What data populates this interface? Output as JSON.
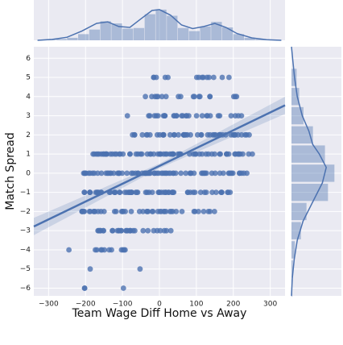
{
  "chart_data": {
    "type": "scatter",
    "subtype": "jointplot",
    "title": "",
    "xlabel": "Team Wage Diff Home vs Away",
    "ylabel": "Match Spread",
    "xlim": [
      -340,
      340
    ],
    "ylim": [
      -6.4,
      6.6
    ],
    "x_ticks": [
      -300,
      -200,
      -100,
      0,
      100,
      200,
      300
    ],
    "y_ticks": [
      -6,
      -5,
      -4,
      -3,
      -2,
      -1,
      0,
      1,
      2,
      3,
      4,
      5,
      6
    ],
    "x_tick_labels": [
      "−300",
      "−200",
      "−100",
      "0",
      "100",
      "200",
      "300"
    ],
    "y_tick_labels": [
      "−6",
      "−5",
      "−4",
      "−3",
      "−2",
      "−1",
      "0",
      "1",
      "2",
      "3",
      "4",
      "5",
      "6"
    ],
    "grid": true,
    "regression": {
      "slope": 0.0093,
      "intercept": 0.38,
      "ci_halfwidth": [
        0.12,
        0.45
      ]
    },
    "colors": {
      "points": "#4c72b0",
      "line": "#4c72b0",
      "band": "#4c72b0",
      "background": "#eaeaf2",
      "grid": "#ffffff"
    },
    "points_by_spread": [
      {
        "y": 5,
        "ranges": [
          [
            -30,
            40
          ],
          [
            95,
            210
          ]
        ],
        "n": 14
      },
      {
        "y": 4,
        "ranges": [
          [
            -50,
            60
          ],
          [
            85,
            215
          ]
        ],
        "n": 18
      },
      {
        "y": 3,
        "ranges": [
          [
            -100,
            -85
          ],
          [
            -35,
            225
          ]
        ],
        "n": 30
      },
      {
        "y": 2,
        "ranges": [
          [
            -75,
            245
          ]
        ],
        "n": 48
      },
      {
        "y": 1,
        "ranges": [
          [
            -180,
            255
          ]
        ],
        "n": 70
      },
      {
        "y": 0,
        "ranges": [
          [
            -215,
            240
          ]
        ],
        "n": 78
      },
      {
        "y": -1,
        "ranges": [
          [
            -225,
            200
          ]
        ],
        "n": 62
      },
      {
        "y": -2,
        "ranges": [
          [
            -210,
            150
          ]
        ],
        "n": 45
      },
      {
        "y": -3,
        "ranges": [
          [
            -185,
            40
          ],
          [
            220,
            222
          ]
        ],
        "n": 30
      },
      {
        "y": -4,
        "ranges": [
          [
            -245,
            -240
          ],
          [
            -175,
            -75
          ],
          [
            -40,
            -35
          ]
        ],
        "n": 12
      },
      {
        "y": -5,
        "ranges": [
          [
            -190,
            -185
          ],
          [
            -55,
            -50
          ]
        ],
        "n": 2
      },
      {
        "y": -6,
        "ranges": [
          [
            -205,
            -200
          ],
          [
            -100,
            -95
          ]
        ],
        "n": 3
      }
    ],
    "marginal_x": {
      "bin_edges": [
        -310,
        -280,
        -250,
        -220,
        -190,
        -160,
        -130,
        -100,
        -70,
        -40,
        -10,
        20,
        50,
        80,
        110,
        140,
        170,
        200,
        230,
        260,
        290
      ],
      "counts": [
        0.02,
        0.04,
        0.08,
        0.2,
        0.35,
        0.62,
        0.55,
        0.38,
        0.4,
        0.85,
        1.0,
        0.8,
        0.4,
        0.3,
        0.45,
        0.6,
        0.42,
        0.2,
        0.08,
        0.03
      ],
      "kde": [
        [
          -330,
          0.0
        ],
        [
          -290,
          0.03
        ],
        [
          -250,
          0.1
        ],
        [
          -210,
          0.3
        ],
        [
          -170,
          0.55
        ],
        [
          -140,
          0.6
        ],
        [
          -110,
          0.45
        ],
        [
          -80,
          0.42
        ],
        [
          -50,
          0.7
        ],
        [
          -20,
          0.97
        ],
        [
          0,
          1.0
        ],
        [
          30,
          0.82
        ],
        [
          60,
          0.5
        ],
        [
          90,
          0.38
        ],
        [
          120,
          0.45
        ],
        [
          150,
          0.55
        ],
        [
          180,
          0.42
        ],
        [
          210,
          0.22
        ],
        [
          250,
          0.08
        ],
        [
          290,
          0.02
        ],
        [
          330,
          0.0
        ]
      ]
    },
    "marginal_y": {
      "bins": [
        -6,
        -5,
        -4,
        -3,
        -2,
        -1,
        0,
        1,
        2,
        3,
        4,
        5
      ],
      "counts": [
        0.02,
        0.03,
        0.08,
        0.22,
        0.35,
        0.85,
        1.0,
        0.78,
        0.5,
        0.28,
        0.18,
        0.12
      ],
      "kde": [
        [
          -6.4,
          0.0
        ],
        [
          -5.5,
          0.02
        ],
        [
          -4.5,
          0.07
        ],
        [
          -3.5,
          0.15
        ],
        [
          -2.5,
          0.3
        ],
        [
          -1.5,
          0.55
        ],
        [
          -0.5,
          0.8
        ],
        [
          0.3,
          0.9
        ],
        [
          1,
          0.72
        ],
        [
          1.5,
          0.55
        ],
        [
          2.2,
          0.45
        ],
        [
          3,
          0.28
        ],
        [
          4,
          0.15
        ],
        [
          5,
          0.08
        ],
        [
          6,
          0.03
        ],
        [
          6.6,
          0.0
        ]
      ]
    }
  }
}
